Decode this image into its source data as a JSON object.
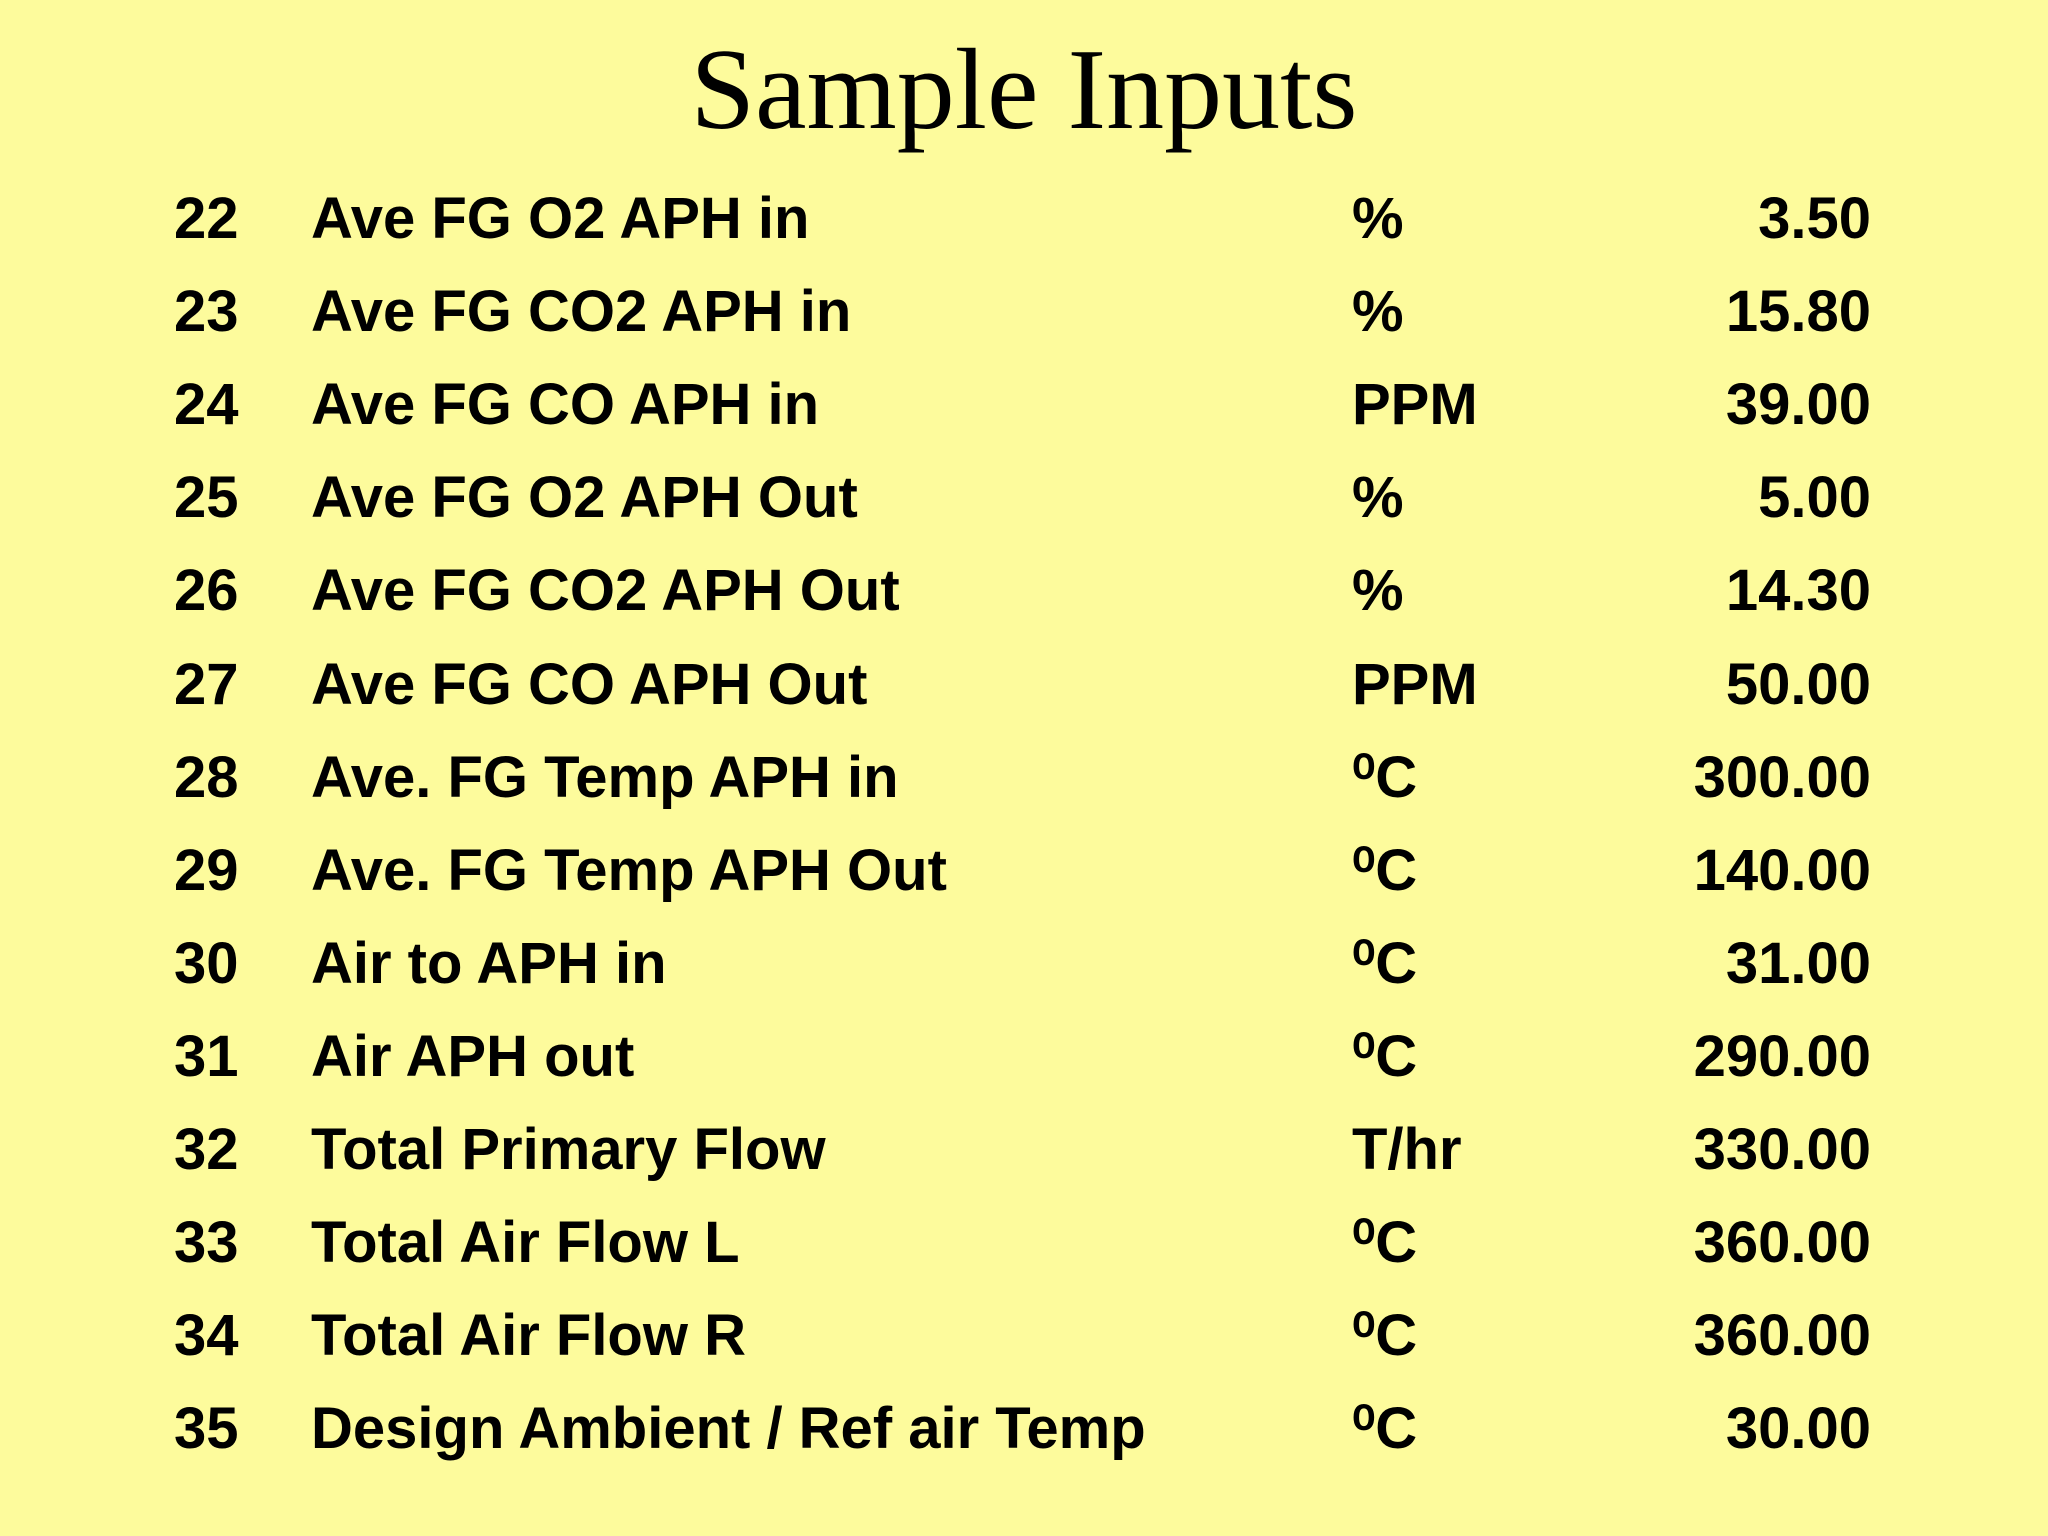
{
  "title": "Sample Inputs",
  "table": {
    "rows": [
      [
        "22",
        "Ave FG O2 APH in",
        "%",
        "3.50"
      ],
      [
        "23",
        "Ave FG CO2 APH in",
        "%",
        "15.80"
      ],
      [
        "24",
        "Ave FG CO APH in",
        "PPM",
        "39.00"
      ],
      [
        "25",
        "Ave FG O2 APH Out",
        "%",
        "5.00"
      ],
      [
        "26",
        "Ave FG CO2 APH Out",
        "%",
        "14.30"
      ],
      [
        "27",
        "Ave FG CO APH Out",
        "PPM",
        "50.00"
      ],
      [
        "28",
        "Ave. FG Temp APH in",
        "⁰C",
        "300.00"
      ],
      [
        "29",
        "Ave. FG Temp APH Out",
        "⁰C",
        "140.00"
      ],
      [
        "30",
        "Air to APH in",
        "⁰C",
        "31.00"
      ],
      [
        "31",
        "Air APH out",
        "⁰C",
        "290.00"
      ],
      [
        "32",
        "Total Primary Flow",
        "T/hr",
        "330.00"
      ],
      [
        "33",
        "Total Air Flow L",
        "⁰C",
        "360.00"
      ],
      [
        "34",
        "Total Air Flow R",
        "⁰C",
        "360.00"
      ],
      [
        "35",
        "Design Ambient / Ref air Temp",
        "⁰C",
        "30.00"
      ]
    ]
  }
}
